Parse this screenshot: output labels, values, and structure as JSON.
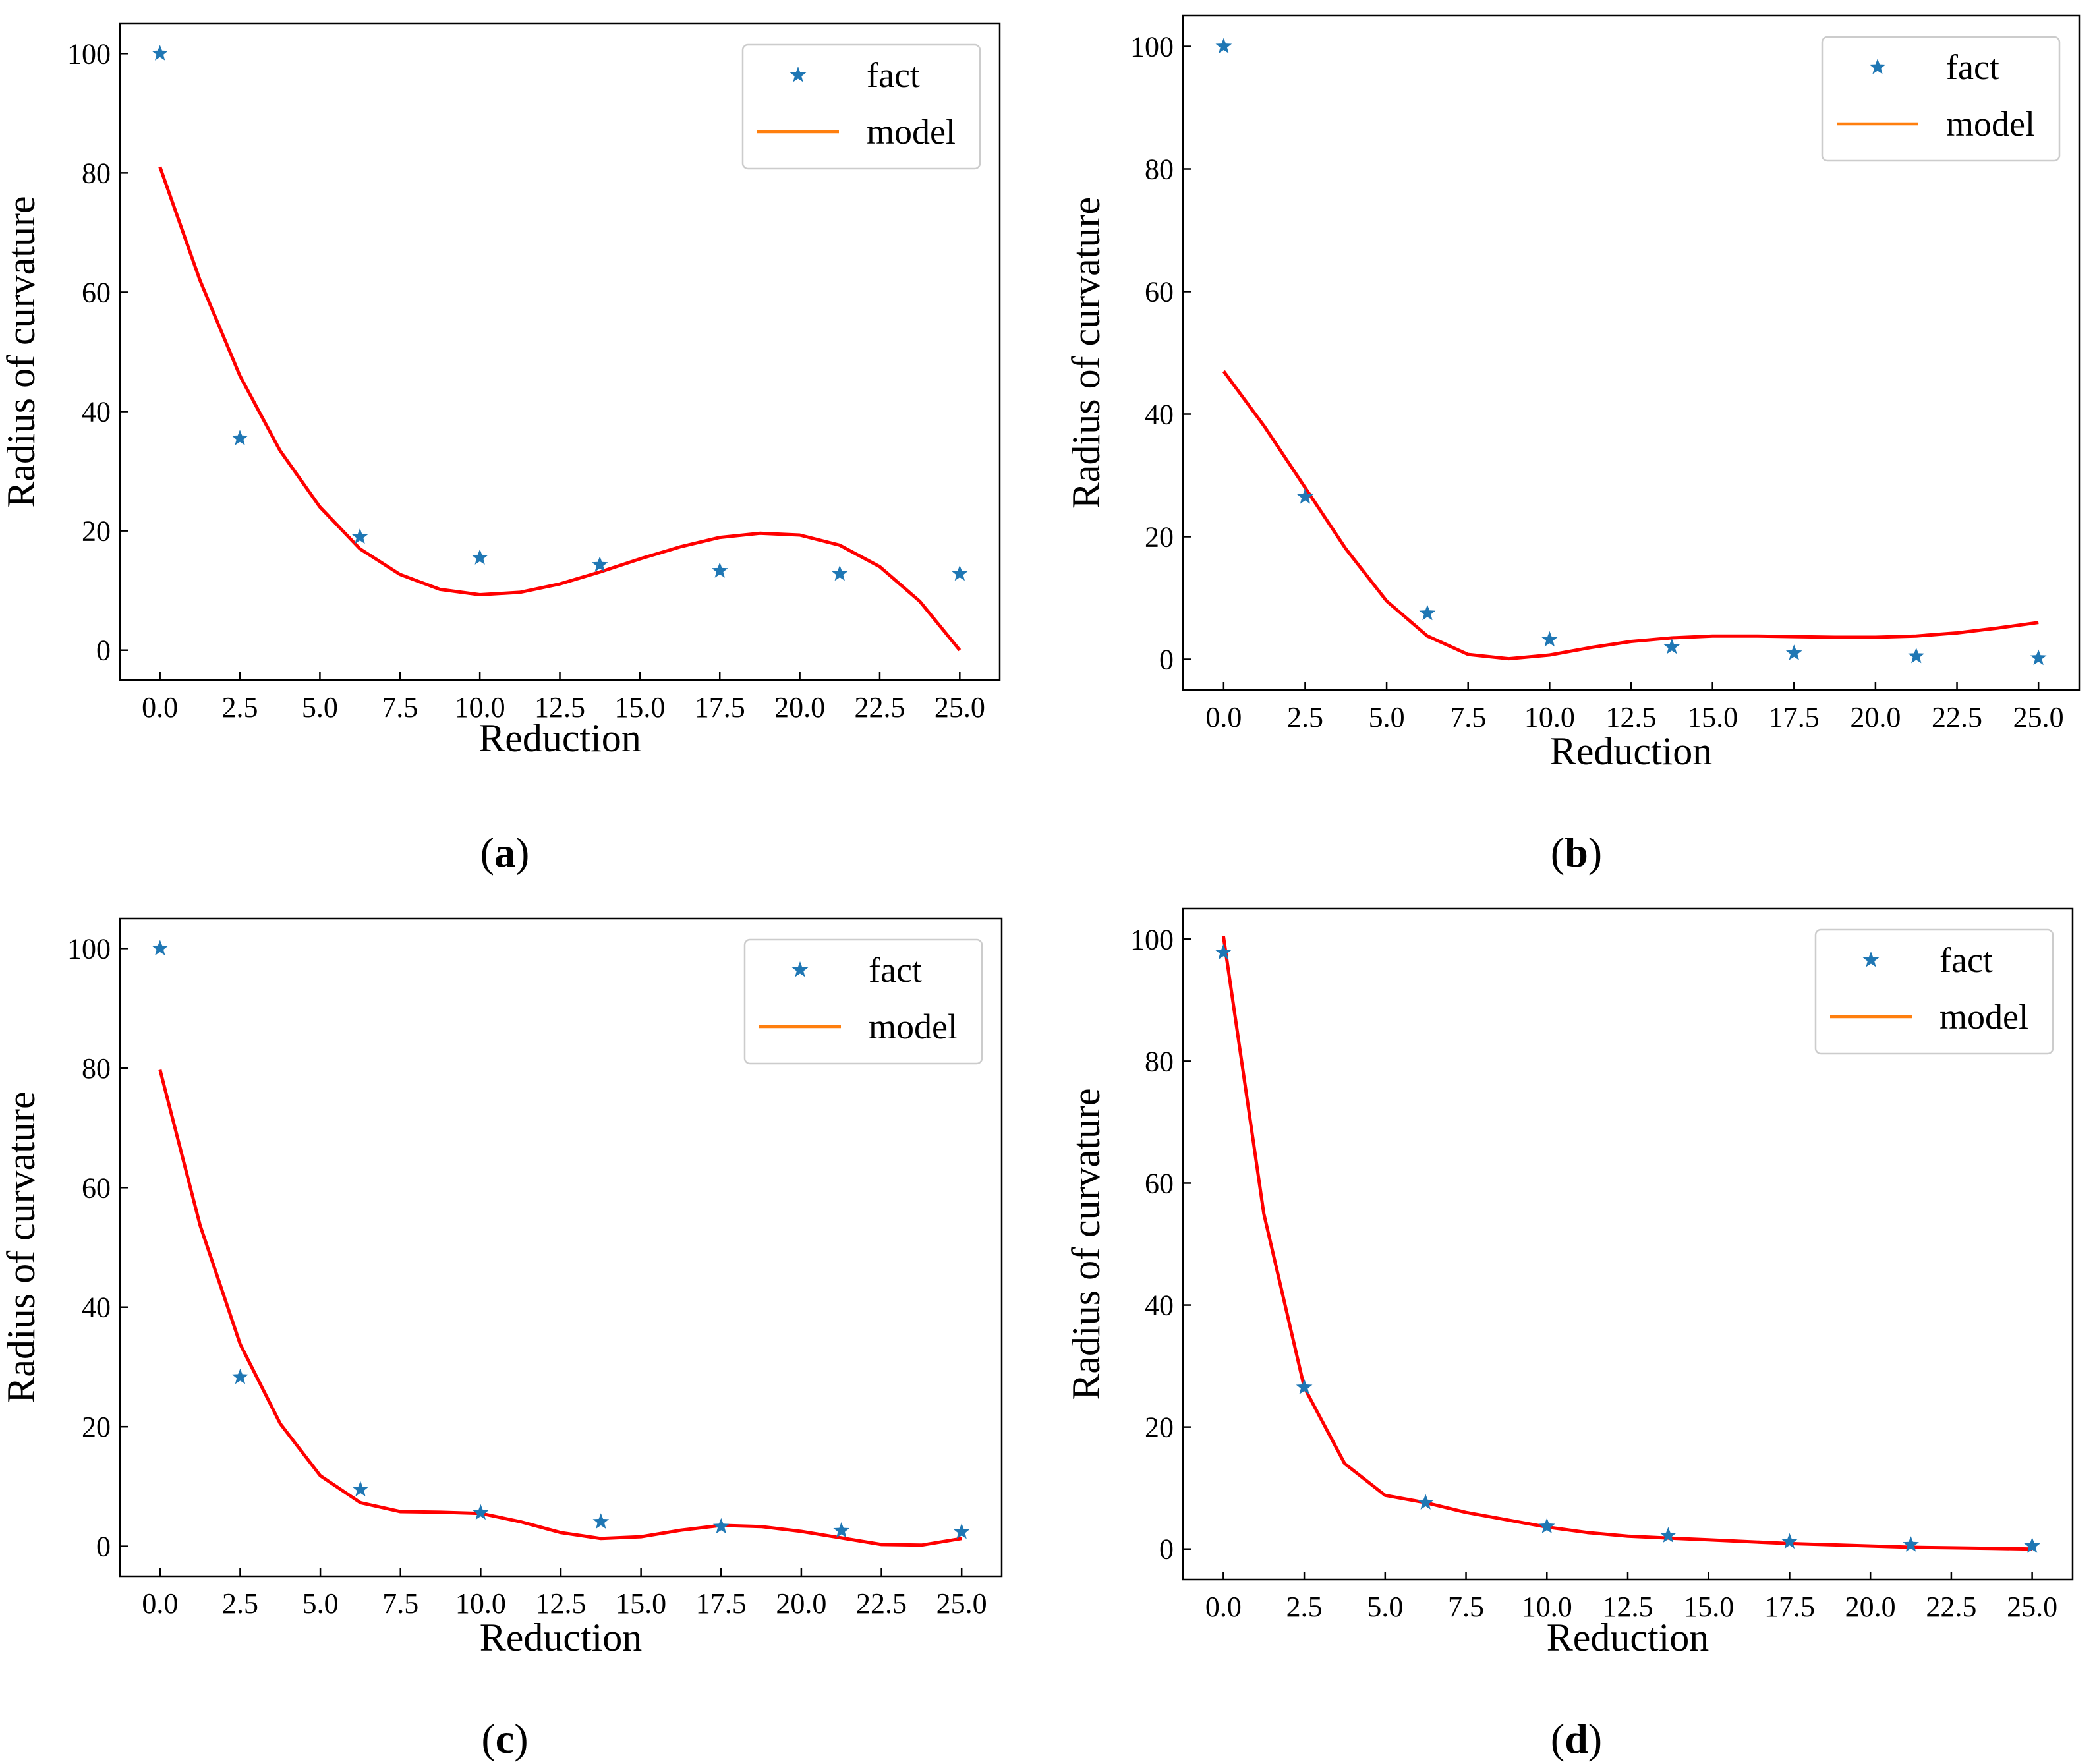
{
  "figure": {
    "colors": {
      "fact": "#1f77b4",
      "model_line": "#ff0000",
      "legend_model": "#ff7f0e",
      "axis": "#000000"
    },
    "legend_entries": [
      {
        "label": "fact",
        "icon": "star-marker-icon"
      },
      {
        "label": "model",
        "icon": "line-icon"
      }
    ]
  },
  "chart_data": [
    {
      "id": "a",
      "type": "scatter+line",
      "caption": "a",
      "xlabel": "Reduction",
      "ylabel": "Radius of curvature",
      "xlim": [
        -1.25,
        26.25
      ],
      "ylim": [
        -5,
        105
      ],
      "xticks": [
        "0.0",
        "2.5",
        "5.0",
        "7.5",
        "10.0",
        "12.5",
        "15.0",
        "17.5",
        "20.0",
        "22.5",
        "25.0"
      ],
      "xtick_values": [
        0,
        2.5,
        5,
        7.5,
        10,
        12.5,
        15,
        17.5,
        20,
        22.5,
        25
      ],
      "yticks": [
        "0",
        "20",
        "40",
        "60",
        "80",
        "100"
      ],
      "ytick_values": [
        0,
        20,
        40,
        60,
        80,
        100
      ],
      "legend": {
        "position": "top-right",
        "entries": [
          "fact",
          "model"
        ]
      },
      "series": [
        {
          "name": "fact",
          "kind": "scatter",
          "x": [
            0,
            2.5,
            6.25,
            10,
            13.75,
            17.5,
            21.25,
            25
          ],
          "y": [
            100,
            35.5,
            19,
            15.5,
            14.3,
            13.3,
            12.8,
            12.8
          ]
        },
        {
          "name": "model",
          "kind": "line",
          "x": [
            0,
            1.25,
            2.5,
            3.75,
            5,
            6.25,
            7.5,
            8.75,
            10,
            11.25,
            12.5,
            13.75,
            15,
            16.25,
            17.5,
            18.75,
            20,
            21.25,
            22.5,
            23.75,
            25
          ],
          "y": [
            81,
            62,
            46,
            33.5,
            24,
            17,
            12.7,
            10.2,
            9.3,
            9.7,
            11.1,
            13.1,
            15.3,
            17.3,
            18.9,
            19.6,
            19.3,
            17.6,
            14,
            8.2,
            0
          ]
        }
      ]
    },
    {
      "id": "b",
      "type": "scatter+line",
      "caption": "b",
      "xlabel": "Reduction",
      "ylabel": "Radius of curvature",
      "xlim": [
        -1.25,
        26.25
      ],
      "ylim": [
        -5,
        105
      ],
      "xticks": [
        "0.0",
        "2.5",
        "5.0",
        "7.5",
        "10.0",
        "12.5",
        "15.0",
        "17.5",
        "20.0",
        "22.5",
        "25.0"
      ],
      "xtick_values": [
        0,
        2.5,
        5,
        7.5,
        10,
        12.5,
        15,
        17.5,
        20,
        22.5,
        25
      ],
      "yticks": [
        "0",
        "20",
        "40",
        "60",
        "80",
        "100"
      ],
      "ytick_values": [
        0,
        20,
        40,
        60,
        80,
        100
      ],
      "legend": {
        "position": "top-right",
        "entries": [
          "fact",
          "model"
        ]
      },
      "series": [
        {
          "name": "fact",
          "kind": "scatter",
          "x": [
            0,
            2.5,
            6.25,
            10,
            13.75,
            17.5,
            21.25,
            25
          ],
          "y": [
            100,
            26.5,
            7.5,
            3.2,
            2,
            1,
            0.5,
            0.2
          ]
        },
        {
          "name": "model",
          "kind": "line",
          "x": [
            0,
            1.25,
            2.5,
            3.75,
            5,
            6.25,
            7.5,
            8.75,
            10,
            11.25,
            12.5,
            13.75,
            15,
            16.25,
            17.5,
            18.75,
            20,
            21.25,
            22.5,
            23.75,
            25
          ],
          "y": [
            47,
            38,
            28,
            18,
            9.5,
            3.8,
            0.8,
            0.1,
            0.7,
            1.9,
            2.9,
            3.5,
            3.8,
            3.8,
            3.7,
            3.6,
            3.6,
            3.8,
            4.3,
            5.1,
            6
          ]
        }
      ]
    },
    {
      "id": "c",
      "type": "scatter+line",
      "caption": "c",
      "xlabel": "Reduction",
      "ylabel": "Radius of curvature",
      "xlim": [
        -1.25,
        26.25
      ],
      "ylim": [
        -5,
        105
      ],
      "xticks": [
        "0.0",
        "2.5",
        "5.0",
        "7.5",
        "10.0",
        "12.5",
        "15.0",
        "17.5",
        "20.0",
        "22.5",
        "25.0"
      ],
      "xtick_values": [
        0,
        2.5,
        5,
        7.5,
        10,
        12.5,
        15,
        17.5,
        20,
        22.5,
        25
      ],
      "yticks": [
        "0",
        "20",
        "40",
        "60",
        "80",
        "100"
      ],
      "ytick_values": [
        0,
        20,
        40,
        60,
        80,
        100
      ],
      "legend": {
        "position": "top-right",
        "entries": [
          "fact",
          "model"
        ]
      },
      "series": [
        {
          "name": "fact",
          "kind": "scatter",
          "x": [
            0,
            2.5,
            6.25,
            10,
            13.75,
            17.5,
            21.25,
            25
          ],
          "y": [
            100,
            28.3,
            9.5,
            5.6,
            4.1,
            3.3,
            2.6,
            2.4
          ]
        },
        {
          "name": "model",
          "kind": "line",
          "x": [
            0,
            1.25,
            2.5,
            3.75,
            5,
            6.25,
            7.5,
            8.75,
            10,
            11.25,
            12.5,
            13.75,
            15,
            16.25,
            17.5,
            18.75,
            20,
            21.25,
            22.5,
            23.75,
            25
          ],
          "y": [
            79.7,
            53.7,
            33.8,
            20.5,
            11.8,
            7.3,
            5.8,
            5.7,
            5.5,
            4.1,
            2.3,
            1.3,
            1.6,
            2.7,
            3.5,
            3.3,
            2.5,
            1.4,
            0.3,
            0.2,
            1.3
          ]
        }
      ]
    },
    {
      "id": "d",
      "type": "scatter+line",
      "caption": "d",
      "xlabel": "Reduction",
      "ylabel": "Radius of curvature",
      "xlim": [
        -1.25,
        26.25
      ],
      "ylim": [
        -5,
        105
      ],
      "xticks": [
        "0.0",
        "2.5",
        "5.0",
        "7.5",
        "10.0",
        "12.5",
        "15.0",
        "17.5",
        "20.0",
        "22.5",
        "25.0"
      ],
      "xtick_values": [
        0,
        2.5,
        5,
        7.5,
        10,
        12.5,
        15,
        17.5,
        20,
        22.5,
        25
      ],
      "yticks": [
        "0",
        "20",
        "40",
        "60",
        "80",
        "100"
      ],
      "ytick_values": [
        0,
        20,
        40,
        60,
        80,
        100
      ],
      "legend": {
        "position": "top-right",
        "entries": [
          "fact",
          "model"
        ]
      },
      "series": [
        {
          "name": "fact",
          "kind": "scatter",
          "x": [
            0,
            2.5,
            6.25,
            10,
            13.75,
            17.5,
            21.25,
            25
          ],
          "y": [
            97.8,
            26.5,
            7.6,
            3.7,
            2.2,
            1.2,
            0.7,
            0.5
          ]
        },
        {
          "name": "model",
          "kind": "line",
          "x": [
            0,
            1.25,
            2.5,
            3.75,
            5,
            6.25,
            7.5,
            8.75,
            10,
            11.25,
            12.5,
            13.75,
            15,
            16.25,
            17.5,
            18.75,
            20,
            21.25,
            22.5,
            23.75,
            25
          ],
          "y": [
            100.5,
            55,
            26.5,
            14,
            8.8,
            7.6,
            6,
            4.8,
            3.6,
            2.7,
            2.1,
            1.8,
            1.5,
            1.2,
            0.9,
            0.7,
            0.5,
            0.3,
            0.2,
            0.1,
            0
          ]
        }
      ]
    }
  ]
}
